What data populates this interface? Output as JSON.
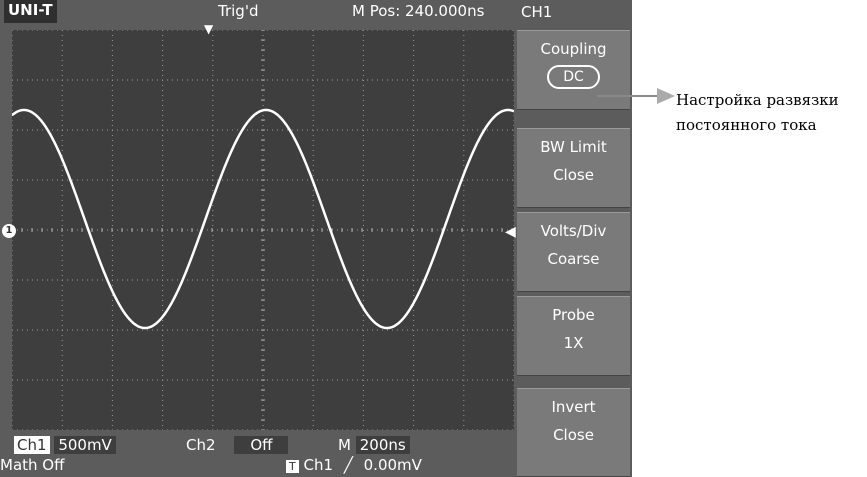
{
  "header": {
    "brand": "UNI-T",
    "trigger_status": "Trig'd",
    "m_pos": "M Pos: 240.000ns",
    "channel": "CH1"
  },
  "markers": {
    "channel_marker": "1"
  },
  "menu": {
    "coupling": {
      "label": "Coupling",
      "value": "DC"
    },
    "bw_limit": {
      "label": "BW  Limit",
      "value": "Close"
    },
    "volts_div": {
      "label": "Volts/Div",
      "value": "Coarse"
    },
    "probe": {
      "label": "Probe",
      "value": "1X"
    },
    "invert": {
      "label": "Invert",
      "value": "Close"
    }
  },
  "status": {
    "ch1_label": "Ch1",
    "ch1_value": "500mV",
    "ch2_label": "Ch2",
    "ch2_value": "Off",
    "timebase_label": "M",
    "timebase_value": "200ns",
    "math": "Math Off",
    "trig_icon": "T",
    "trig_source": "Ch1",
    "trig_level": "0.00mV"
  },
  "annotation": {
    "line1": "Настройка развязки",
    "line2": "постоянного тока"
  },
  "colors": {
    "screen_bg": "#3e3e3e",
    "frame_bg": "#5c5c5c",
    "menu_bg": "#7a7a7a",
    "trace": "#ffffff"
  }
}
